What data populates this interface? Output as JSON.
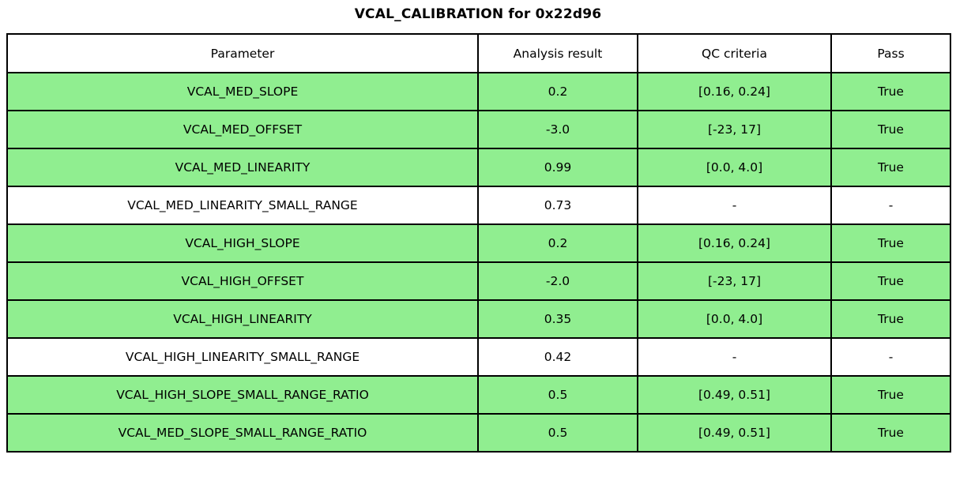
{
  "title": "VCAL_CALIBRATION for 0x22d96",
  "colors": {
    "pass_row_bg": "#90EE90",
    "neutral_row_bg": "#FFFFFF",
    "border": "#000000",
    "text": "#000000"
  },
  "table": {
    "columns": [
      "Parameter",
      "Analysis result",
      "QC criteria",
      "Pass"
    ],
    "rows": [
      {
        "parameter": "VCAL_MED_SLOPE",
        "result": "0.2",
        "criteria": "[0.16, 0.24]",
        "pass": "True",
        "bg": "#90EE90"
      },
      {
        "parameter": "VCAL_MED_OFFSET",
        "result": "-3.0",
        "criteria": "[-23, 17]",
        "pass": "True",
        "bg": "#90EE90"
      },
      {
        "parameter": "VCAL_MED_LINEARITY",
        "result": "0.99",
        "criteria": "[0.0, 4.0]",
        "pass": "True",
        "bg": "#90EE90"
      },
      {
        "parameter": "VCAL_MED_LINEARITY_SMALL_RANGE",
        "result": "0.73",
        "criteria": "-",
        "pass": "-",
        "bg": "#FFFFFF"
      },
      {
        "parameter": "VCAL_HIGH_SLOPE",
        "result": "0.2",
        "criteria": "[0.16, 0.24]",
        "pass": "True",
        "bg": "#90EE90"
      },
      {
        "parameter": "VCAL_HIGH_OFFSET",
        "result": "-2.0",
        "criteria": "[-23, 17]",
        "pass": "True",
        "bg": "#90EE90"
      },
      {
        "parameter": "VCAL_HIGH_LINEARITY",
        "result": "0.35",
        "criteria": "[0.0, 4.0]",
        "pass": "True",
        "bg": "#90EE90"
      },
      {
        "parameter": "VCAL_HIGH_LINEARITY_SMALL_RANGE",
        "result": "0.42",
        "criteria": "-",
        "pass": "-",
        "bg": "#FFFFFF"
      },
      {
        "parameter": "VCAL_HIGH_SLOPE_SMALL_RANGE_RATIO",
        "result": "0.5",
        "criteria": "[0.49, 0.51]",
        "pass": "True",
        "bg": "#90EE90"
      },
      {
        "parameter": "VCAL_MED_SLOPE_SMALL_RANGE_RATIO",
        "result": "0.5",
        "criteria": "[0.49, 0.51]",
        "pass": "True",
        "bg": "#90EE90"
      }
    ]
  },
  "chart_data": {
    "type": "table",
    "title": "VCAL_CALIBRATION for 0x22d96",
    "columns": [
      "Parameter",
      "Analysis result",
      "QC criteria",
      "Pass"
    ],
    "rows": [
      [
        "VCAL_MED_SLOPE",
        "0.2",
        "[0.16, 0.24]",
        "True"
      ],
      [
        "VCAL_MED_OFFSET",
        "-3.0",
        "[-23, 17]",
        "True"
      ],
      [
        "VCAL_MED_LINEARITY",
        "0.99",
        "[0.0, 4.0]",
        "True"
      ],
      [
        "VCAL_MED_LINEARITY_SMALL_RANGE",
        "0.73",
        "-",
        "-"
      ],
      [
        "VCAL_HIGH_SLOPE",
        "0.2",
        "[0.16, 0.24]",
        "True"
      ],
      [
        "VCAL_HIGH_OFFSET",
        "-2.0",
        "[-23, 17]",
        "True"
      ],
      [
        "VCAL_HIGH_LINEARITY",
        "0.35",
        "[0.0, 4.0]",
        "True"
      ],
      [
        "VCAL_HIGH_LINEARITY_SMALL_RANGE",
        "0.42",
        "-",
        "-"
      ],
      [
        "VCAL_HIGH_SLOPE_SMALL_RANGE_RATIO",
        "0.5",
        "[0.49, 0.51]",
        "True"
      ],
      [
        "VCAL_MED_SLOPE_SMALL_RANGE_RATIO",
        "0.5",
        "[0.49, 0.51]",
        "True"
      ]
    ],
    "row_highlighted_green": [
      true,
      true,
      true,
      false,
      true,
      true,
      true,
      false,
      true,
      true
    ]
  }
}
